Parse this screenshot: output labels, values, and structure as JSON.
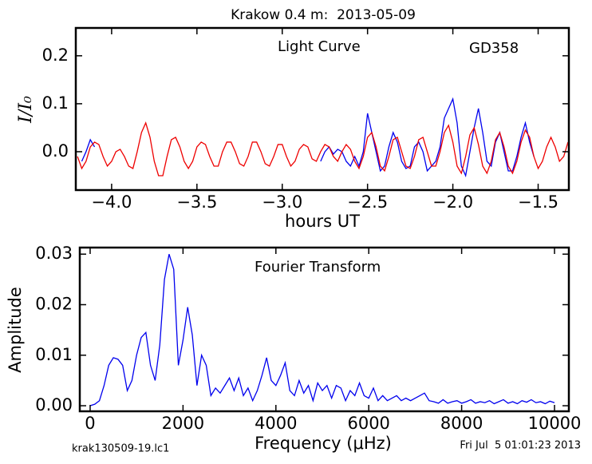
{
  "chart_data": [
    {
      "type": "line",
      "title": "Krakow 0.4 m:  2013-05-09",
      "annotations": [
        "Light Curve",
        "GD358"
      ],
      "ylabel": "I/I₀",
      "xlabel": "hours UT",
      "xlim": [
        -4.21,
        -1.32
      ],
      "ylim": [
        -0.08,
        0.258
      ],
      "xticks": [
        {
          "value": -4,
          "label": "−4.0"
        },
        {
          "value": -3.5,
          "label": "−3.5"
        },
        {
          "value": -3,
          "label": "−3.0"
        },
        {
          "value": -2.5,
          "label": "−2.5"
        },
        {
          "value": -2,
          "label": "−2.0"
        },
        {
          "value": -1.5,
          "label": "−1.5"
        }
      ],
      "yticks": [
        {
          "value": 0,
          "label": "0.0"
        },
        0.1,
        0.2
      ],
      "x": [
        -4.2,
        -4.175,
        -4.15,
        -4.125,
        -4.1,
        -4.075,
        -4.05,
        -4.025,
        -4,
        -3.975,
        -3.95,
        -3.925,
        -3.9,
        -3.875,
        -3.85,
        -3.825,
        -3.8,
        -3.775,
        -3.75,
        -3.725,
        -3.7,
        -3.675,
        -3.65,
        -3.625,
        -3.6,
        -3.575,
        -3.55,
        -3.525,
        -3.5,
        -3.475,
        -3.45,
        -3.425,
        -3.4,
        -3.375,
        -3.35,
        -3.325,
        -3.3,
        -3.275,
        -3.25,
        -3.225,
        -3.2,
        -3.175,
        -3.15,
        -3.125,
        -3.1,
        -3.075,
        -3.05,
        -3.025,
        -3,
        -2.975,
        -2.95,
        -2.925,
        -2.9,
        -2.875,
        -2.85,
        -2.825,
        -2.8,
        -2.775,
        -2.75,
        -2.725,
        -2.7,
        -2.675,
        -2.65,
        -2.625,
        -2.6,
        -2.575,
        -2.55,
        -2.525,
        -2.5,
        -2.475,
        -2.45,
        -2.425,
        -2.4,
        -2.375,
        -2.35,
        -2.325,
        -2.3,
        -2.275,
        -2.25,
        -2.225,
        -2.2,
        -2.175,
        -2.15,
        -2.125,
        -2.1,
        -2.075,
        -2.05,
        -2.025,
        -2,
        -1.975,
        -1.95,
        -1.925,
        -1.9,
        -1.875,
        -1.85,
        -1.825,
        -1.8,
        -1.775,
        -1.75,
        -1.725,
        -1.7,
        -1.675,
        -1.65,
        -1.625,
        -1.6,
        -1.575,
        -1.55,
        -1.525,
        -1.5,
        -1.475,
        -1.45,
        -1.425,
        -1.4,
        -1.375,
        -1.35,
        -1.325
      ],
      "series": [
        {
          "color": "#0000ee",
          "values": [
            null,
            -0.02,
            0.0,
            0.025,
            0.01,
            null,
            null,
            null,
            null,
            null,
            null,
            null,
            null,
            null,
            null,
            null,
            null,
            null,
            null,
            null,
            null,
            null,
            null,
            null,
            null,
            null,
            null,
            null,
            null,
            null,
            null,
            null,
            null,
            null,
            null,
            null,
            null,
            null,
            null,
            null,
            null,
            null,
            null,
            null,
            null,
            null,
            null,
            null,
            null,
            null,
            null,
            null,
            null,
            null,
            null,
            null,
            null,
            -0.02,
            0.0,
            0.01,
            -0.005,
            0.005,
            0.0,
            -0.02,
            -0.03,
            -0.01,
            -0.03,
            0.0,
            0.08,
            0.04,
            0.0,
            -0.04,
            -0.03,
            0.01,
            0.04,
            0.02,
            -0.02,
            -0.035,
            -0.03,
            0.01,
            0.02,
            0.0,
            -0.04,
            -0.03,
            -0.02,
            0.01,
            0.07,
            0.09,
            0.11,
            0.06,
            -0.03,
            -0.05,
            0.0,
            0.05,
            0.09,
            0.04,
            -0.02,
            -0.03,
            0.02,
            0.04,
            0.0,
            -0.04,
            -0.04,
            -0.01,
            0.03,
            0.06,
            0.02,
            -0.01,
            null,
            null,
            null,
            null,
            null,
            null,
            null,
            null
          ]
        },
        {
          "color": "#ee0000",
          "values": [
            -0.01,
            -0.035,
            -0.02,
            0.01,
            0.02,
            0.015,
            -0.01,
            -0.03,
            -0.02,
            0.0,
            0.005,
            -0.01,
            -0.03,
            -0.035,
            0.0,
            0.04,
            0.06,
            0.03,
            -0.02,
            -0.05,
            -0.05,
            -0.01,
            0.025,
            0.03,
            0.01,
            -0.02,
            -0.035,
            -0.02,
            0.01,
            0.02,
            0.015,
            -0.01,
            -0.03,
            -0.03,
            0.0,
            0.02,
            0.02,
            0.0,
            -0.025,
            -0.03,
            -0.01,
            0.02,
            0.02,
            0.0,
            -0.025,
            -0.03,
            -0.01,
            0.015,
            0.015,
            -0.01,
            -0.03,
            -0.02,
            0.005,
            0.015,
            0.01,
            -0.015,
            -0.02,
            0.0,
            0.015,
            0.01,
            -0.01,
            -0.02,
            0.0,
            0.015,
            0.005,
            -0.02,
            -0.035,
            -0.01,
            0.03,
            0.04,
            0.01,
            -0.03,
            -0.04,
            -0.01,
            0.025,
            0.03,
            0.0,
            -0.03,
            -0.035,
            -0.01,
            0.025,
            0.03,
            0.0,
            -0.03,
            -0.03,
            0.0,
            0.04,
            0.055,
            0.02,
            -0.03,
            -0.045,
            -0.01,
            0.035,
            0.05,
            0.015,
            -0.03,
            -0.045,
            -0.02,
            0.025,
            0.04,
            0.01,
            -0.03,
            -0.045,
            -0.02,
            0.02,
            0.045,
            0.03,
            -0.01,
            -0.035,
            -0.02,
            0.01,
            0.03,
            0.01,
            -0.02,
            -0.01,
            0.02
          ]
        }
      ]
    },
    {
      "type": "line",
      "annotations": [
        "Fourier Transform"
      ],
      "ylabel": "Amplitude",
      "xlabel": "Frequency (μHz)",
      "xlim": [
        -223,
        10309
      ],
      "ylim": [
        -0.0011,
        0.0313
      ],
      "xticks": [
        0,
        2000,
        4000,
        6000,
        8000,
        10000
      ],
      "yticks": [
        {
          "value": 0,
          "label": "0.00"
        },
        0.01,
        0.02,
        0.03
      ],
      "x": [
        0,
        100,
        200,
        300,
        400,
        500,
        600,
        700,
        800,
        900,
        1000,
        1100,
        1200,
        1300,
        1400,
        1500,
        1600,
        1700,
        1800,
        1900,
        2000,
        2100,
        2200,
        2300,
        2400,
        2500,
        2600,
        2700,
        2800,
        2900,
        3000,
        3100,
        3200,
        3300,
        3400,
        3500,
        3600,
        3700,
        3800,
        3900,
        4000,
        4100,
        4200,
        4300,
        4400,
        4500,
        4600,
        4700,
        4800,
        4900,
        5000,
        5100,
        5200,
        5300,
        5400,
        5500,
        5600,
        5700,
        5800,
        5900,
        6000,
        6100,
        6200,
        6300,
        6400,
        6500,
        6600,
        6700,
        6800,
        6900,
        7000,
        7100,
        7200,
        7300,
        7400,
        7500,
        7600,
        7700,
        7800,
        7900,
        8000,
        8100,
        8200,
        8300,
        8400,
        8500,
        8600,
        8700,
        8800,
        8900,
        9000,
        9100,
        9200,
        9300,
        9400,
        9500,
        9600,
        9700,
        9800,
        9900,
        10000
      ],
      "series": [
        {
          "color": "#0000ee",
          "values": [
            0.0,
            0.0003,
            0.001,
            0.004,
            0.008,
            0.0095,
            0.0092,
            0.008,
            0.003,
            0.005,
            0.01,
            0.0135,
            0.0145,
            0.008,
            0.005,
            0.012,
            0.025,
            0.03,
            0.027,
            0.008,
            0.013,
            0.0195,
            0.014,
            0.004,
            0.01,
            0.008,
            0.002,
            0.0035,
            0.0025,
            0.004,
            0.0055,
            0.003,
            0.0055,
            0.002,
            0.0035,
            0.001,
            0.003,
            0.006,
            0.0095,
            0.005,
            0.004,
            0.006,
            0.0085,
            0.003,
            0.002,
            0.005,
            0.0025,
            0.004,
            0.001,
            0.0045,
            0.003,
            0.004,
            0.0015,
            0.004,
            0.0035,
            0.001,
            0.003,
            0.002,
            0.0045,
            0.002,
            0.0015,
            0.0035,
            0.001,
            0.002,
            0.001,
            0.0015,
            0.002,
            0.001,
            0.0015,
            0.001,
            0.0015,
            0.002,
            0.0025,
            0.001,
            0.0008,
            0.0005,
            0.0012,
            0.0005,
            0.0008,
            0.001,
            0.0005,
            0.0008,
            0.0012,
            0.0005,
            0.0008,
            0.0006,
            0.001,
            0.0004,
            0.0008,
            0.0012,
            0.0005,
            0.0008,
            0.0004,
            0.001,
            0.0007,
            0.0012,
            0.0006,
            0.0008,
            0.0004,
            0.0009,
            0.0006
          ]
        }
      ]
    }
  ],
  "footer": {
    "left": "krak130509-19.lc1",
    "right": "Fri Jul  5 01:01:23 2013"
  }
}
